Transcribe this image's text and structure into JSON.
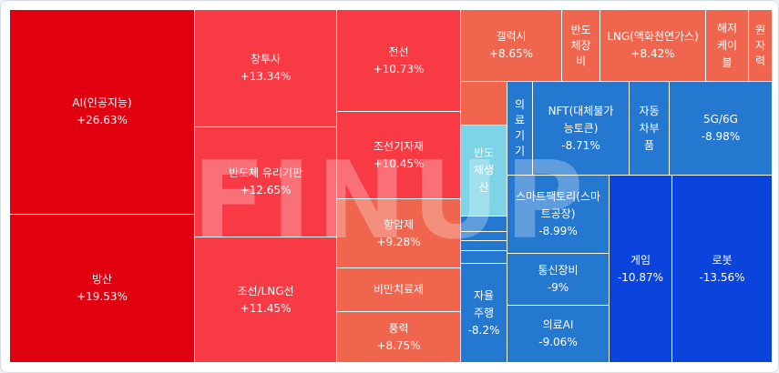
{
  "watermark": "FINUP",
  "colors": {
    "red_strong": "#e0000f",
    "red": "#f83a45",
    "salmon": "#f0654d",
    "blue_strong": "#0b44dc",
    "blue": "#2478d0",
    "cyan": "#7fd3e6"
  },
  "tiles": [
    {
      "id": "ai",
      "name": "AI(인공지능)",
      "change": "+26.63%"
    },
    {
      "id": "defense",
      "name": "방산",
      "change": "+19.53%"
    },
    {
      "id": "holding",
      "name": "창투사",
      "change": "+13.34%"
    },
    {
      "id": "glass",
      "name": "반도체 유리기판",
      "change": "+12.65%"
    },
    {
      "id": "ship-lng",
      "name": "조선/LNG선",
      "change": "+11.45%"
    },
    {
      "id": "wire",
      "name": "전선",
      "change": "+10.73%"
    },
    {
      "id": "ship-parts",
      "name": "조선기자재",
      "change": "+10.45%"
    },
    {
      "id": "cancer",
      "name": "항암제",
      "change": "+9.28%"
    },
    {
      "id": "obesity",
      "name": "비만치료제",
      "change": ""
    },
    {
      "id": "wind",
      "name": "풍력",
      "change": "+8.75%"
    },
    {
      "id": "galaxy",
      "name": "갤럭시",
      "change": "+8.65%"
    },
    {
      "id": "semi-equip",
      "name": "반도체장비",
      "change": ""
    },
    {
      "id": "lng",
      "name": "LNG(액화천연가스)",
      "change": "+8.42%"
    },
    {
      "id": "cable",
      "name": "해저케이블",
      "change": ""
    },
    {
      "id": "nuclear",
      "name": "원자력",
      "change": ""
    },
    {
      "id": "medical",
      "name": "의료기기",
      "change": ""
    },
    {
      "id": "nft",
      "name": "NFT(대체불가능토큰)",
      "change": "-8.71%"
    },
    {
      "id": "auto-parts",
      "name": "자동차부품",
      "change": ""
    },
    {
      "id": "5g",
      "name": "5G/6G",
      "change": "-8.98%"
    },
    {
      "id": "semi-prod",
      "name": "반도체생산",
      "change": ""
    },
    {
      "id": "smart-factory",
      "name": "스마트팩토리(스마트공장)",
      "change": "-8.99%"
    },
    {
      "id": "game",
      "name": "게임",
      "change": "-10.87%"
    },
    {
      "id": "robot",
      "name": "로봇",
      "change": "-13.56%"
    },
    {
      "id": "telecom",
      "name": "통신장비",
      "change": "-9%"
    },
    {
      "id": "autonomous",
      "name": "자율주행",
      "change": "-8.2%"
    },
    {
      "id": "medical-ai",
      "name": "의료AI",
      "change": "-9.06%"
    }
  ]
}
